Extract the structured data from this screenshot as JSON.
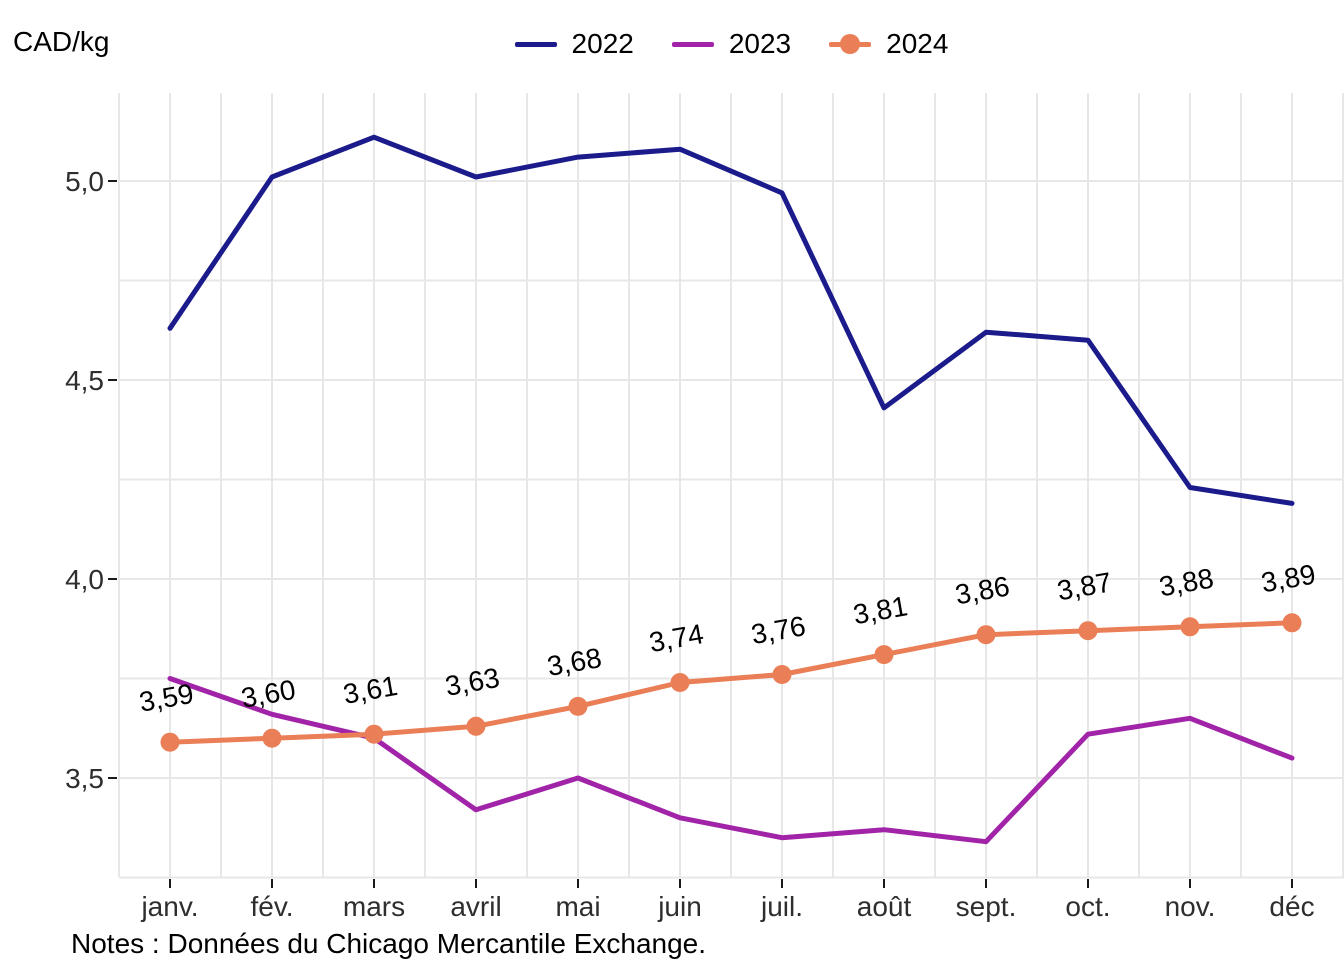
{
  "title": "CAD/kg",
  "notes": "Notes : Données du Chicago Mercantile Exchange.",
  "colors": {
    "series_2022": "#1B1B8C",
    "series_2023": "#A124A8",
    "series_2024": "#EA7E56",
    "gridline": "#E7E7E7",
    "axis_text": "#2E2E2E",
    "tick_mark": "#1A1A1A"
  },
  "chart_data": {
    "type": "line",
    "title": "CAD/kg",
    "xlabel": "",
    "ylabel": "CAD/kg",
    "legend_position": "top-center",
    "grid": "on",
    "x_categories": [
      "janv.",
      "fév.",
      "mars",
      "avril",
      "mai",
      "juin",
      "juil.",
      "août",
      "sept.",
      "oct.",
      "nov.",
      "déc"
    ],
    "y_axis": {
      "range": [
        3.25,
        5.2
      ],
      "minor_step": 0.25,
      "ticks": [
        {
          "value": 3.5,
          "label": "3,5"
        },
        {
          "value": 4.0,
          "label": "4,0"
        },
        {
          "value": 4.5,
          "label": "4,5"
        },
        {
          "value": 5.0,
          "label": "5,0"
        }
      ]
    },
    "series": [
      {
        "name": "2022",
        "color": "#1B1B8C",
        "marker": false,
        "values": [
          4.63,
          5.01,
          5.11,
          5.01,
          5.06,
          5.08,
          4.97,
          4.43,
          4.62,
          4.6,
          4.23,
          4.19
        ]
      },
      {
        "name": "2023",
        "color": "#A124A8",
        "marker": false,
        "values": [
          3.75,
          3.66,
          3.6,
          3.42,
          3.5,
          3.4,
          3.35,
          3.37,
          3.34,
          3.61,
          3.65,
          3.55
        ]
      },
      {
        "name": "2024",
        "color": "#EA7E56",
        "marker": true,
        "values": [
          3.59,
          3.6,
          3.61,
          3.63,
          3.68,
          3.74,
          3.76,
          3.81,
          3.86,
          3.87,
          3.88,
          3.89
        ],
        "point_labels": [
          "3,59",
          "3,60",
          "3,61",
          "3,63",
          "3,68",
          "3,74",
          "3,76",
          "3,81",
          "3,86",
          "3,87",
          "3,88",
          "3,89"
        ]
      }
    ]
  }
}
